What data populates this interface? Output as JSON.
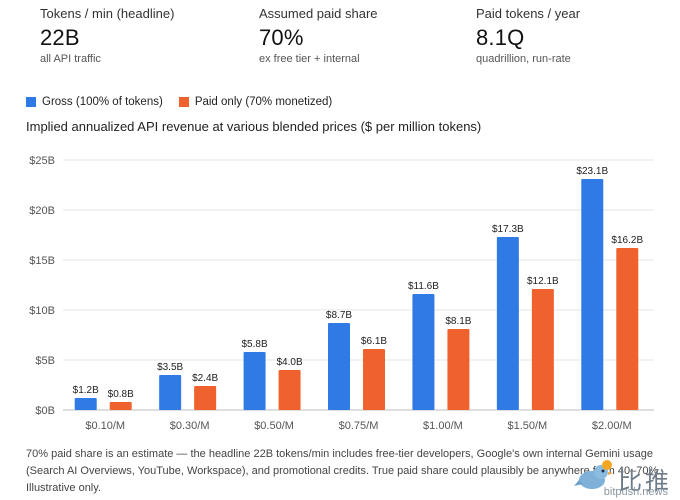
{
  "kpis": [
    {
      "label": "Tokens / min (headline)",
      "value": "22B",
      "sub": "all API traffic"
    },
    {
      "label": "Assumed paid share",
      "value": "70%",
      "sub": "ex free tier + internal"
    },
    {
      "label": "Paid tokens / year",
      "value": "8.1Q",
      "sub": "quadrillion, run-rate"
    }
  ],
  "legend": {
    "gross": "Gross (100% of tokens)",
    "paid": "Paid only (70% monetized)"
  },
  "colors": {
    "gross": "#2f7ae5",
    "paid": "#f0622d",
    "grid": "#e6e6e6",
    "axis": "#555555"
  },
  "chart_data": {
    "type": "bar",
    "title": "Implied annualized API revenue at various blended prices ($ per million tokens)",
    "categories": [
      "$0.10/M",
      "$0.30/M",
      "$0.50/M",
      "$0.75/M",
      "$1.00/M",
      "$1.50/M",
      "$2.00/M"
    ],
    "series": [
      {
        "name": "Gross (100% of tokens)",
        "values": [
          1.2,
          3.5,
          5.8,
          8.7,
          11.6,
          17.3,
          23.1
        ],
        "labels": [
          "$1.2B",
          "$3.5B",
          "$5.8B",
          "$8.7B",
          "$11.6B",
          "$17.3B",
          "$23.1B"
        ]
      },
      {
        "name": "Paid only (70% monetized)",
        "values": [
          0.8,
          2.4,
          4.0,
          6.1,
          8.1,
          12.1,
          16.2
        ],
        "labels": [
          "$0.8B",
          "$2.4B",
          "$4.0B",
          "$6.1B",
          "$8.1B",
          "$12.1B",
          "$16.2B"
        ]
      }
    ],
    "ylim": [
      0,
      25
    ],
    "yticks": [
      0,
      5,
      10,
      15,
      20,
      25
    ],
    "ytick_labels": [
      "$0B",
      "$5B",
      "$10B",
      "$15B",
      "$20B",
      "$25B"
    ],
    "grid": true,
    "legend_position": "top-left"
  },
  "footnote": "70% paid share is an estimate — the headline 22B tokens/min includes free-tier developers, Google's own internal Gemini usage (Search AI Overviews, YouTube, Workspace), and promotional credits. True paid share could plausibly be anywhere from 40–70%. Illustrative only.",
  "watermark": {
    "text": "比推",
    "url": "bitpush.news"
  }
}
